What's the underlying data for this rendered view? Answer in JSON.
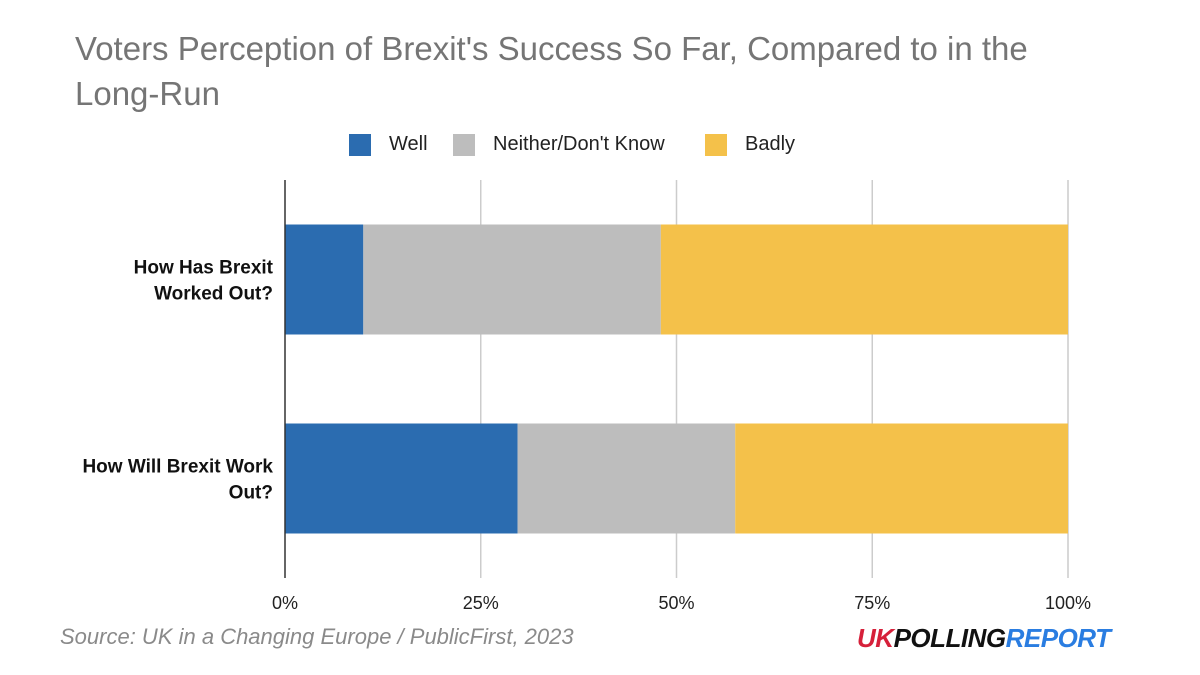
{
  "chart_data": {
    "type": "bar",
    "orientation": "horizontal",
    "stacked": true,
    "title": "Voters Perception of Brexit's Success So Far, Compared to in the Long-Run",
    "categories": [
      "How Has Brexit Worked Out?",
      "How Will Brexit Work Out?"
    ],
    "category_lines": [
      [
        "How Has Brexit",
        "Worked Out?"
      ],
      [
        "How Will Brexit Work",
        "Out?"
      ]
    ],
    "series": [
      {
        "name": "Well",
        "values": [
          10,
          29.7
        ],
        "color": "#2b6cb0"
      },
      {
        "name": "Neither/Don't Know",
        "values": [
          38,
          27.8
        ],
        "color": "#bdbdbd"
      },
      {
        "name": "Badly",
        "values": [
          52,
          42.5
        ],
        "color": "#f4c14a"
      }
    ],
    "xlim": [
      0,
      100
    ],
    "x_ticks": [
      0,
      25,
      50,
      75,
      100
    ],
    "x_tick_labels": [
      "0%",
      "25%",
      "50%",
      "75%",
      "100%"
    ],
    "xlabel": "",
    "ylabel": "",
    "grid": true,
    "legend_position": "top"
  },
  "footer": {
    "source": "Source: UK in a Changing Europe / PublicFirst, 2023",
    "logo_part1": "UK",
    "logo_part2": "POLLING",
    "logo_part3": "REPORT"
  }
}
